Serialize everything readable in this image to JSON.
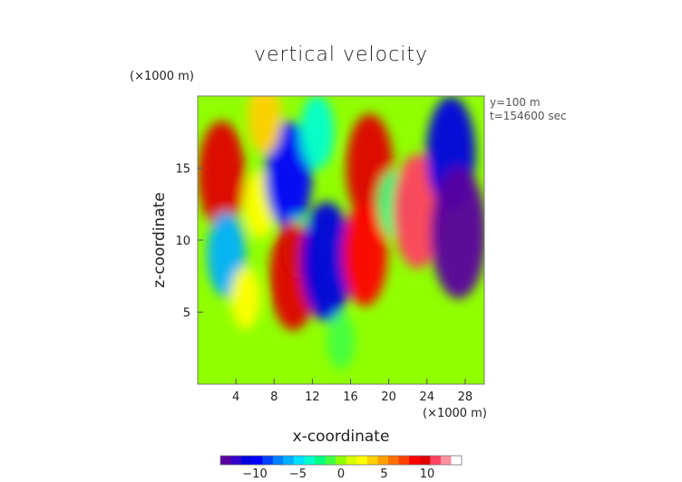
{
  "chart_data": {
    "type": "heatmap",
    "title": "vertical velocity",
    "xlabel": "x-coordinate",
    "ylabel": "z-coordinate",
    "x_unit": "(×1000 m)",
    "y_unit": "(×1000 m)",
    "annotations": [
      "y=100 m",
      "t=154600 sec"
    ],
    "xlim": [
      0,
      30
    ],
    "ylim": [
      0,
      20
    ],
    "xticks": [
      4,
      8,
      12,
      16,
      20,
      24,
      28
    ],
    "yticks": [
      5,
      10,
      15
    ],
    "colorbar": {
      "ticks": [
        -10,
        -5,
        0,
        5,
        10
      ],
      "range": [
        -14,
        14
      ],
      "colors": [
        "#5a00a0",
        "#3200c8",
        "#0000e0",
        "#0000ff",
        "#0040ff",
        "#0080ff",
        "#00b0ff",
        "#00e0ff",
        "#00ffd0",
        "#00ff80",
        "#40ff40",
        "#90ff00",
        "#d8ff00",
        "#ffff00",
        "#ffd000",
        "#ffa000",
        "#ff7000",
        "#ff4000",
        "#ff0000",
        "#e00000",
        "#ff4060",
        "#ff90a0",
        "#ffffff"
      ]
    },
    "features": [
      {
        "x": 2.5,
        "z": 14.5,
        "value": 10
      },
      {
        "x": 3.0,
        "z": 9.0,
        "value": -6
      },
      {
        "x": 6.5,
        "z": 12.5,
        "value": 3
      },
      {
        "x": 9.5,
        "z": 14.5,
        "value": -10
      },
      {
        "x": 10.5,
        "z": 9.5,
        "value": -2
      },
      {
        "x": 12.5,
        "z": 17.5,
        "value": -4
      },
      {
        "x": 10.0,
        "z": 7.5,
        "value": 10
      },
      {
        "x": 13.5,
        "z": 8.5,
        "value": -12
      },
      {
        "x": 18.0,
        "z": 15.0,
        "value": 10
      },
      {
        "x": 17.5,
        "z": 9.0,
        "value": 9
      },
      {
        "x": 20.5,
        "z": 12.5,
        "value": -3
      },
      {
        "x": 23.0,
        "z": 12.0,
        "value": 11
      },
      {
        "x": 26.5,
        "z": 16.0,
        "value": -11
      },
      {
        "x": 27.3,
        "z": 10.5,
        "value": -14
      },
      {
        "x": 7.0,
        "z": 18.5,
        "value": 4
      },
      {
        "x": 15.0,
        "z": 3.0,
        "value": -1
      },
      {
        "x": 5.0,
        "z": 6.0,
        "value": 2
      }
    ]
  }
}
